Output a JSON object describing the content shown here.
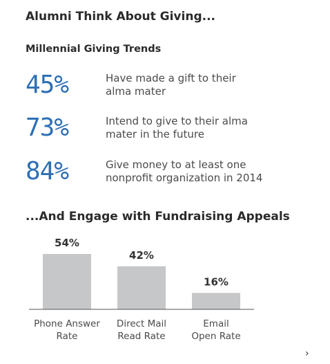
{
  "header": {
    "title": "Alumni Think About Giving...",
    "subtitle": "Millennial  Giving  Trends"
  },
  "stats": [
    {
      "value": "45%",
      "text": "Have made a gift to their\nalma mater"
    },
    {
      "value": "73%",
      "text": "Intend to give to their alma\nmater in the future"
    },
    {
      "value": "84%",
      "text": "Give money to at least one\nnonprofit organization in 2014"
    }
  ],
  "section": {
    "title": "...And Engage with Fundraising Appeals"
  },
  "nav": {
    "next_glyph": "›"
  },
  "colors": {
    "stat_value": "#2e6fb5",
    "bar": "#c6c7c9",
    "text": "#4a4a4a",
    "axis": "#555555"
  },
  "chart_data": {
    "type": "bar",
    "categories": [
      [
        "Phone Answer",
        "Rate"
      ],
      [
        "Direct Mail",
        "Read Rate"
      ],
      [
        "Email",
        "Open Rate"
      ]
    ],
    "values": [
      54,
      42,
      16
    ],
    "value_labels": [
      "54%",
      "42%",
      "16%"
    ],
    "ylim": [
      0,
      54
    ],
    "grid": false,
    "legend": "none"
  }
}
